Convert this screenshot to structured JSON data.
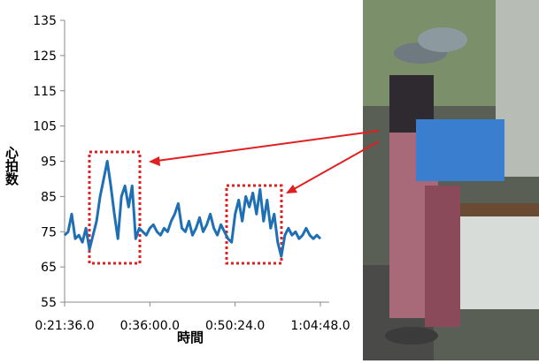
{
  "chart_data": {
    "type": "line",
    "y_label": "心拍数",
    "x_label": "時間",
    "xlim": [
      1296,
      3888
    ],
    "xticks": [
      {
        "value": 1296,
        "label": "0:21:36.0"
      },
      {
        "value": 2160,
        "label": "0:36:00.0"
      },
      {
        "value": 3024,
        "label": "0:50:24.0"
      },
      {
        "value": 3888,
        "label": "1:04:48.0"
      }
    ],
    "ylim": [
      55,
      135
    ],
    "yticks": [
      55,
      65,
      75,
      85,
      95,
      105,
      115,
      125,
      135
    ],
    "grid": false,
    "series": [
      {
        "color": "#1f6fb5",
        "x": [
          1296,
          1332,
          1368,
          1404,
          1440,
          1476,
          1512,
          1548,
          1584,
          1620,
          1656,
          1692,
          1728,
          1764,
          1800,
          1836,
          1872,
          1908,
          1944,
          1980,
          2016,
          2052,
          2088,
          2124,
          2160,
          2196,
          2232,
          2268,
          2304,
          2340,
          2376,
          2412,
          2448,
          2484,
          2520,
          2556,
          2592,
          2628,
          2664,
          2700,
          2736,
          2772,
          2808,
          2844,
          2880,
          2916,
          2952,
          2988,
          3024,
          3060,
          3096,
          3132,
          3168,
          3204,
          3240,
          3276,
          3312,
          3348,
          3384,
          3420,
          3456,
          3492,
          3528,
          3564,
          3600,
          3636,
          3672,
          3708,
          3744,
          3780,
          3816,
          3852,
          3888
        ],
        "values": [
          74,
          75,
          80,
          73,
          74,
          72,
          76,
          70,
          74,
          78,
          85,
          90,
          95,
          88,
          80,
          73,
          85,
          88,
          82,
          88,
          73,
          76,
          75,
          74,
          76,
          77,
          75,
          74,
          76,
          75,
          78,
          80,
          83,
          76,
          75,
          78,
          74,
          76,
          79,
          75,
          77,
          80,
          76,
          74,
          77,
          75,
          73,
          72,
          80,
          84,
          78,
          85,
          82,
          86,
          80,
          87,
          78,
          84,
          76,
          80,
          72,
          68,
          74,
          76,
          74,
          75,
          73,
          74,
          76,
          74,
          73,
          74,
          73
        ]
      }
    ]
  }
}
